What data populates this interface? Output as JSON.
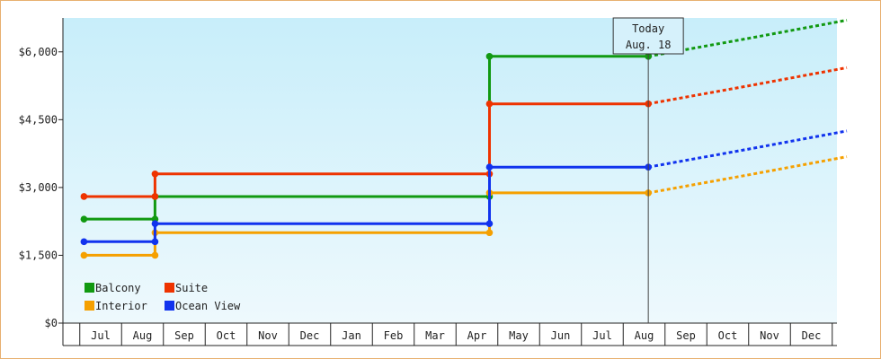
{
  "chart_data": {
    "type": "line",
    "step": true,
    "ylim": [
      0,
      6750
    ],
    "y_ticks": [
      {
        "value": 0,
        "label": "$0"
      },
      {
        "value": 1500,
        "label": "$1,500"
      },
      {
        "value": 3000,
        "label": "$3,000"
      },
      {
        "value": 4500,
        "label": "$4,500"
      },
      {
        "value": 6000,
        "label": "$6,000"
      }
    ],
    "x_labels": [
      "Jul",
      "Aug",
      "Sep",
      "Oct",
      "Nov",
      "Dec",
      "Jan",
      "Feb",
      "Mar",
      "Apr",
      "May",
      "Jun",
      "Jul",
      "Aug",
      "Sep",
      "Oct",
      "Nov",
      "Dec"
    ],
    "x_range": [
      -0.4,
      17.85
    ],
    "today": {
      "line1": "Today",
      "line2": "Aug. 18",
      "x": 13.1
    },
    "series": [
      {
        "name": "Balcony",
        "color": "#119911",
        "points": [
          [
            -0.4,
            2300
          ],
          [
            1.3,
            2300
          ],
          [
            1.3,
            2800
          ],
          [
            9.3,
            2800
          ],
          [
            9.3,
            5900
          ],
          [
            13.1,
            5900
          ]
        ],
        "forecast": [
          [
            13.1,
            5900
          ],
          [
            15.5,
            6300
          ],
          [
            17.85,
            6700
          ]
        ]
      },
      {
        "name": "Suite",
        "color": "#ee3300",
        "points": [
          [
            -0.4,
            2800
          ],
          [
            1.3,
            2800
          ],
          [
            1.3,
            3300
          ],
          [
            9.3,
            3300
          ],
          [
            9.3,
            4850
          ],
          [
            13.1,
            4850
          ]
        ],
        "forecast": [
          [
            13.1,
            4850
          ],
          [
            15.5,
            5250
          ],
          [
            17.85,
            5650
          ]
        ]
      },
      {
        "name": "Interior",
        "color": "#f5a000",
        "points": [
          [
            -0.4,
            1500
          ],
          [
            1.3,
            1500
          ],
          [
            1.3,
            2000
          ],
          [
            9.3,
            2000
          ],
          [
            9.3,
            2880
          ],
          [
            13.1,
            2880
          ]
        ],
        "forecast": [
          [
            13.1,
            2880
          ],
          [
            15.5,
            3280
          ],
          [
            17.85,
            3680
          ]
        ]
      },
      {
        "name": "Ocean View",
        "color": "#1133ee",
        "points": [
          [
            -0.4,
            1800
          ],
          [
            1.3,
            1800
          ],
          [
            1.3,
            2200
          ],
          [
            9.3,
            2200
          ],
          [
            9.3,
            3450
          ],
          [
            13.1,
            3450
          ]
        ],
        "forecast": [
          [
            13.1,
            3450
          ],
          [
            15.5,
            3850
          ],
          [
            17.85,
            4250
          ]
        ]
      }
    ],
    "legend": {
      "placement": "bottom-left",
      "rows": [
        [
          "Balcony",
          "Suite"
        ],
        [
          "Interior",
          "Ocean View"
        ]
      ]
    },
    "grid": false
  }
}
